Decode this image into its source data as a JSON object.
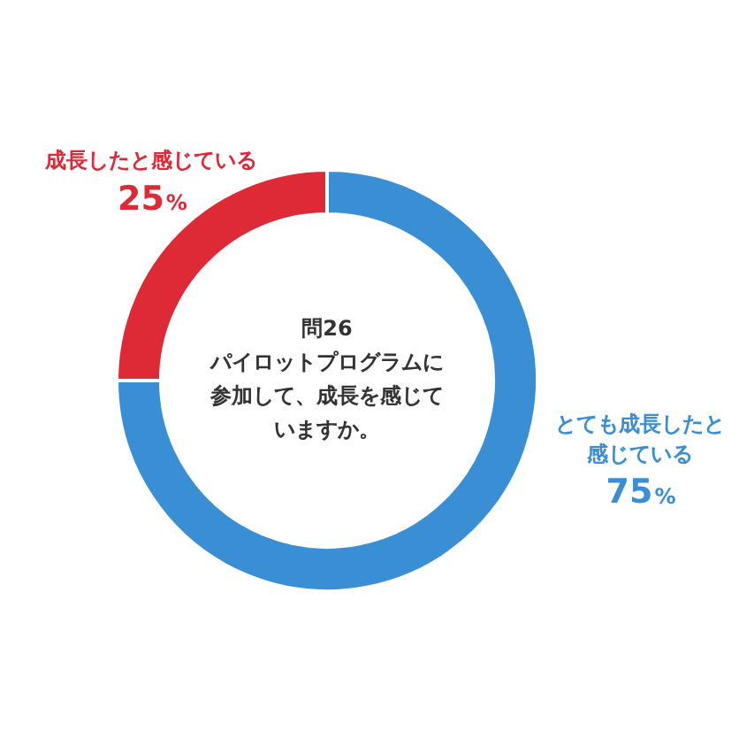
{
  "chart_data": {
    "type": "donut",
    "title": "問26",
    "subtitle": "パイロットプログラムに参加して、成長を感じていますか。",
    "categories": [
      "とても成長したと感じている",
      "成長したと感じている"
    ],
    "values": [
      75,
      25
    ],
    "colors": [
      "#3a8fd4",
      "#dd2a36"
    ],
    "value_labels": [
      "75%",
      "25%"
    ],
    "legend": false
  }
}
